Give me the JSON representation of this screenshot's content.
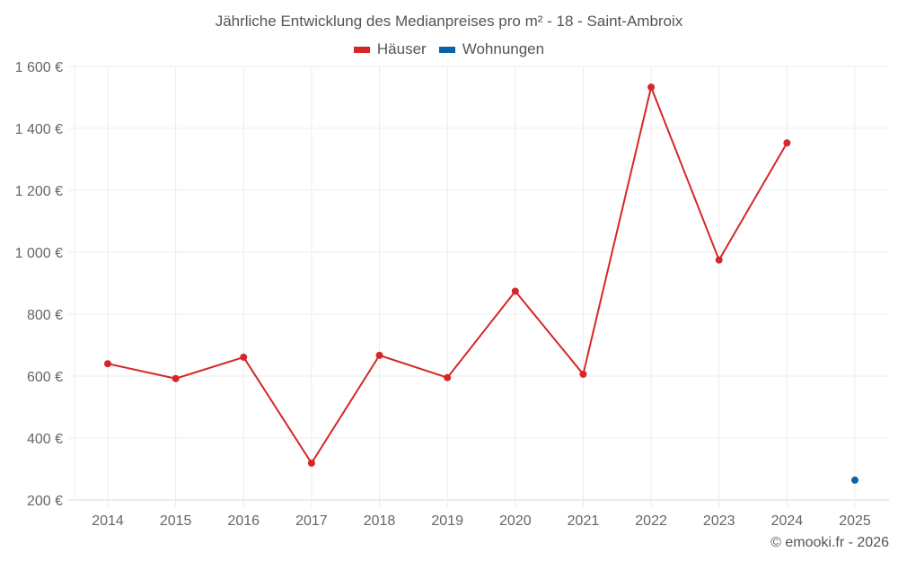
{
  "title": "Jährliche Entwicklung des Medianpreises pro m² - 18 - Saint-Ambroix",
  "legend": [
    {
      "label": "Häuser",
      "color": "#d62728"
    },
    {
      "label": "Wohnungen",
      "color": "#1f77b4"
    }
  ],
  "credit": "© emooki.fr - 2026",
  "colors": {
    "houses": "#d62728",
    "apartments": "#0b62a4",
    "grid": "#ececec",
    "axis": "#d9d9d9",
    "text": "#666666"
  },
  "chart_data": {
    "type": "line",
    "title": "Jährliche Entwicklung des Medianpreises pro m² - 18 - Saint-Ambroix",
    "xlabel": "",
    "ylabel": "",
    "categories": [
      "2014",
      "2015",
      "2016",
      "2017",
      "2018",
      "2019",
      "2020",
      "2021",
      "2022",
      "2023",
      "2024",
      "2025"
    ],
    "series": [
      {
        "name": "Häuser",
        "color": "#d62728",
        "values": [
          640,
          592,
          661,
          319,
          667,
          595,
          874,
          606,
          1533,
          975,
          1353,
          null
        ]
      },
      {
        "name": "Wohnungen",
        "color": "#0b62a4",
        "values": [
          null,
          null,
          null,
          null,
          null,
          null,
          null,
          null,
          null,
          null,
          null,
          264
        ]
      }
    ],
    "ylim": [
      200,
      1600
    ],
    "yticks": [
      200,
      400,
      600,
      800,
      1000,
      1200,
      1400,
      1600
    ],
    "ytick_labels": [
      "200 €",
      "400 €",
      "600 €",
      "800 €",
      "1 000 €",
      "1 200 €",
      "1 400 €",
      "1 600 €"
    ],
    "grid": true,
    "legend_position": "top-center"
  }
}
